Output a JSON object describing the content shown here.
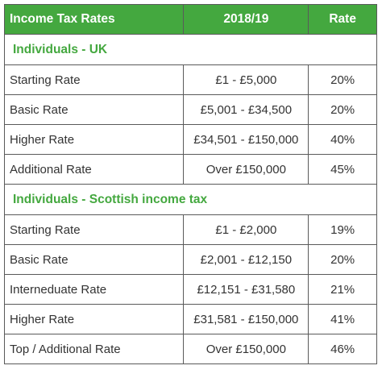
{
  "table": {
    "headers": [
      "Income Tax Rates",
      "2018/19",
      "Rate"
    ],
    "sections": [
      {
        "title": "Individuals - UK",
        "rows": [
          {
            "label": "Starting Rate",
            "band": "£1 - £5,000",
            "rate": "20%"
          },
          {
            "label": "Basic Rate",
            "band": "£5,001 - £34,500",
            "rate": "20%"
          },
          {
            "label": "Higher Rate",
            "band": "£34,501 - £150,000",
            "rate": "40%"
          },
          {
            "label": "Additional Rate",
            "band": "Over £150,000",
            "rate": "45%"
          }
        ]
      },
      {
        "title": "Individuals - Scottish income tax",
        "rows": [
          {
            "label": "Starting Rate",
            "band": "£1 - £2,000",
            "rate": "19%"
          },
          {
            "label": "Basic Rate",
            "band": "£2,001 - £12,150",
            "rate": "20%"
          },
          {
            "label": "Interneduate Rate",
            "band": "£12,151 - £31,580",
            "rate": "21%"
          },
          {
            "label": "Higher Rate",
            "band": "£31,581 - £150,000",
            "rate": "41%"
          },
          {
            "label": "Top / Additional Rate",
            "band": "Over £150,000",
            "rate": "46%"
          }
        ]
      }
    ]
  },
  "colors": {
    "header_bg": "#44a83f",
    "header_text": "#ffffff",
    "section_text": "#44a83f",
    "body_text": "#333333",
    "border": "#5a5a5a"
  }
}
